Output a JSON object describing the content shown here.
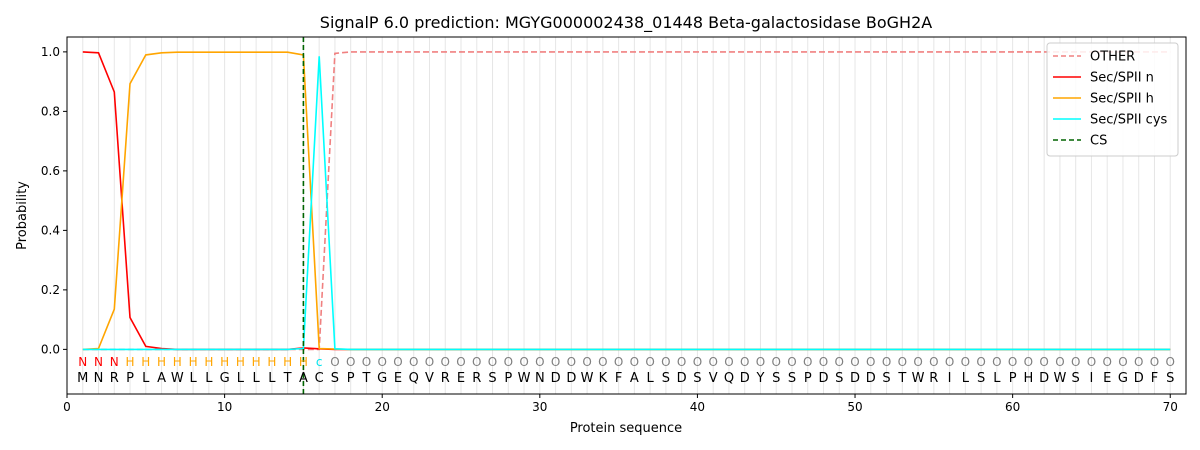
{
  "chart_data": {
    "type": "line",
    "title": "SignalP 6.0 prediction: MGYG000002438_01448 Beta-galactosidase BoGH2A",
    "xlabel": "Protein sequence",
    "ylabel": "Probability",
    "xlim": [
      0,
      71
    ],
    "ylim": [
      -0.15,
      1.05
    ],
    "x_ticks": [
      0,
      10,
      20,
      30,
      40,
      50,
      60,
      70
    ],
    "y_ticks": [
      0.0,
      0.2,
      0.4,
      0.6,
      0.8,
      1.0
    ],
    "grid": "vertical lines at each residue",
    "legend_position": "top-right",
    "sequence": [
      "M",
      "N",
      "R",
      "P",
      "L",
      "A",
      "W",
      "L",
      "L",
      "G",
      "L",
      "L",
      "L",
      "T",
      "A",
      "C",
      "S",
      "P",
      "T",
      "G",
      "E",
      "Q",
      "V",
      "R",
      "E",
      "R",
      "S",
      "P",
      "W",
      "N",
      "D",
      "D",
      "W",
      "K",
      "F",
      "A",
      "L",
      "S",
      "D",
      "S",
      "V",
      "Q",
      "D",
      "Y",
      "S",
      "S",
      "P",
      "D",
      "S",
      "D",
      "D",
      "S",
      "T",
      "W",
      "R",
      "I",
      "L",
      "S",
      "L",
      "P",
      "H",
      "D",
      "W",
      "S",
      "I",
      "E",
      "G",
      "D",
      "F",
      "S"
    ],
    "labels": [
      "N",
      "N",
      "N",
      "H",
      "H",
      "H",
      "H",
      "H",
      "H",
      "H",
      "H",
      "H",
      "H",
      "H",
      "H",
      "c",
      "O",
      "O",
      "O",
      "O",
      "O",
      "O",
      "O",
      "O",
      "O",
      "O",
      "O",
      "O",
      "O",
      "O",
      "O",
      "O",
      "O",
      "O",
      "O",
      "O",
      "O",
      "O",
      "O",
      "O",
      "O",
      "O",
      "O",
      "O",
      "O",
      "O",
      "O",
      "O",
      "O",
      "O",
      "O",
      "O",
      "O",
      "O",
      "O",
      "O",
      "O",
      "O",
      "O",
      "O",
      "O",
      "O",
      "O",
      "O",
      "O",
      "O",
      "O",
      "O",
      "O",
      "O"
    ],
    "label_colors": {
      "N": "#ff0000",
      "H": "#ffa500",
      "c": "#00e5ee",
      "O": "#808080"
    },
    "series": [
      {
        "name": "OTHER",
        "color": "#f08080",
        "dash": true,
        "values": [
          0,
          0,
          0,
          0,
          0,
          0,
          0,
          0,
          0,
          0,
          0,
          0,
          0,
          0,
          0,
          0,
          0.995,
          1,
          1,
          1,
          1,
          1,
          1,
          1,
          1,
          1,
          1,
          1,
          1,
          1,
          1,
          1,
          1,
          1,
          1,
          1,
          1,
          1,
          1,
          1,
          1,
          1,
          1,
          1,
          1,
          1,
          1,
          1,
          1,
          1,
          1,
          1,
          1,
          1,
          1,
          1,
          1,
          1,
          1,
          1,
          1,
          1,
          1,
          1,
          1,
          1,
          1,
          1,
          1,
          1
        ]
      },
      {
        "name": "Sec/SPII n",
        "color": "#ff0000",
        "dash": false,
        "values": [
          1.0,
          0.997,
          0.865,
          0.107,
          0.01,
          0.003,
          0,
          0,
          0,
          0,
          0,
          0,
          0,
          0,
          0.005,
          0.002,
          0,
          0,
          0,
          0,
          0,
          0,
          0,
          0,
          0,
          0,
          0,
          0,
          0,
          0,
          0,
          0,
          0,
          0,
          0,
          0,
          0,
          0,
          0,
          0,
          0,
          0,
          0,
          0,
          0,
          0,
          0,
          0,
          0,
          0,
          0,
          0,
          0,
          0,
          0,
          0,
          0,
          0,
          0,
          0,
          0,
          0,
          0,
          0,
          0,
          0,
          0,
          0,
          0,
          0
        ]
      },
      {
        "name": "Sec/SPII h",
        "color": "#ffa500",
        "dash": false,
        "values": [
          0,
          0.003,
          0.135,
          0.893,
          0.99,
          0.997,
          0.999,
          0.999,
          0.999,
          0.999,
          0.999,
          0.999,
          0.999,
          0.999,
          0.99,
          0.003,
          0.001,
          0,
          0,
          0,
          0,
          0,
          0,
          0,
          0,
          0,
          0,
          0,
          0,
          0,
          0,
          0,
          0,
          0,
          0,
          0,
          0,
          0,
          0,
          0,
          0,
          0,
          0,
          0,
          0,
          0,
          0,
          0,
          0,
          0,
          0,
          0,
          0,
          0,
          0,
          0,
          0,
          0,
          0,
          0,
          0,
          0,
          0,
          0,
          0,
          0,
          0,
          0,
          0,
          0
        ]
      },
      {
        "name": "Sec/SPII cys",
        "color": "#00ffff",
        "dash": false,
        "values": [
          0,
          0,
          0,
          0,
          0,
          0,
          0,
          0,
          0,
          0,
          0,
          0,
          0,
          0,
          0.003,
          0.985,
          0.002,
          0,
          0,
          0,
          0,
          0,
          0,
          0,
          0,
          0,
          0,
          0,
          0,
          0,
          0,
          0,
          0,
          0,
          0,
          0,
          0,
          0,
          0,
          0,
          0,
          0,
          0,
          0,
          0,
          0,
          0,
          0,
          0,
          0,
          0,
          0,
          0,
          0,
          0,
          0,
          0,
          0,
          0,
          0,
          0,
          0,
          0,
          0,
          0,
          0,
          0,
          0,
          0,
          0
        ]
      }
    ],
    "cs_line": {
      "name": "CS",
      "x": 15,
      "color": "#006400"
    }
  }
}
